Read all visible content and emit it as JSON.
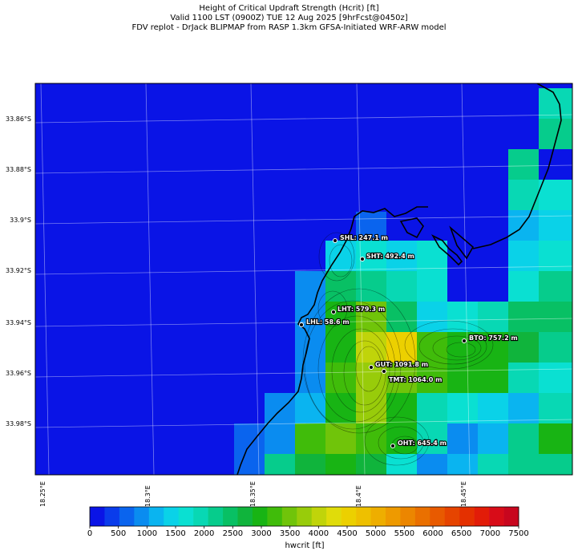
{
  "title": {
    "line1": "Height of Critical Updraft Strength (Hcrit) [ft]",
    "line2": "Valid 1100 LST (0900Z) TUE 12 Aug 2025 [9hrFcst@0450z]",
    "line3": "FDV replot - DrJack BLIPMAP from RASP 1.3km GFSA-Initiated WRF-ARW model"
  },
  "axes": {
    "lat_labels": [
      "33.86°S",
      "33.88°S",
      "33.9°S",
      "33.92°S",
      "33.94°S",
      "33.96°S",
      "33.98°S"
    ],
    "lon_labels": [
      "18.25°E",
      "18.3°E",
      "18.35°E",
      "18.4°E",
      "18.45°E"
    ]
  },
  "stations": [
    {
      "label": "SHL: 247.1 m"
    },
    {
      "label": "SHT: 492.4 m"
    },
    {
      "label": "LHT: 579.3 m"
    },
    {
      "label": "LHL: 58.6 m"
    },
    {
      "label": "BTO: 757.2 m"
    },
    {
      "label": "GUT: 1091.8 m"
    },
    {
      "label": "TMT: 1064.0 m"
    },
    {
      "label": "OHT: 645.4 m"
    }
  ],
  "colorbar": {
    "label": "hwcrit [ft]",
    "ticks": [
      "0",
      "500",
      "1000",
      "1500",
      "2000",
      "2500",
      "3000",
      "3500",
      "4000",
      "4500",
      "5000",
      "5500",
      "6000",
      "6500",
      "7000",
      "7500"
    ],
    "colors": [
      "#0a14e6",
      "#0a3ceb",
      "#0a64ee",
      "#0a8cf0",
      "#0ab4f0",
      "#0ad2e8",
      "#0ae0d2",
      "#08d8b4",
      "#06cc8c",
      "#08c064",
      "#10b43c",
      "#18b414",
      "#40bc0a",
      "#70c40a",
      "#98cc0a",
      "#c0d40a",
      "#e0dc0a",
      "#ecd000",
      "#eec000",
      "#eeae00",
      "#ee9a00",
      "#ec8600",
      "#ea7000",
      "#e85a00",
      "#e64400",
      "#e43000",
      "#e21c08",
      "#d80c18",
      "#c8061e"
    ]
  },
  "chart_data": {
    "type": "heatmap",
    "variable": "Height of Critical Updraft Strength (Hcrit)",
    "units": "ft",
    "colorbar_range": [
      0,
      7500
    ],
    "colorbar_step": 250,
    "lat_range_visible": [
      -33.997,
      -33.847
    ],
    "lon_range_visible": [
      18.25,
      18.51
    ],
    "grid_lines": true,
    "cells": [
      {
        "row": 0,
        "col": 16,
        "v": 1750
      },
      {
        "row": 1,
        "col": 16,
        "v": 1750
      },
      {
        "row": 2,
        "col": 16,
        "v": 2000
      },
      {
        "row": 2,
        "col": 15,
        "v": 2000
      },
      {
        "row": 3,
        "col": 15,
        "v": 1750
      },
      {
        "row": 3,
        "col": 16,
        "v": 1500
      },
      {
        "row": 4,
        "col": 15,
        "v": 1000
      },
      {
        "row": 4,
        "col": 16,
        "v": 1250
      },
      {
        "row": 5,
        "col": 15,
        "v": 1250
      },
      {
        "row": 5,
        "col": 16,
        "v": 1500
      },
      {
        "row": 6,
        "col": 15,
        "v": 1500
      },
      {
        "row": 6,
        "col": 16,
        "v": 2000
      },
      {
        "row": 7,
        "col": 14,
        "v": 2250
      },
      {
        "row": 7,
        "col": 15,
        "v": 2250
      },
      {
        "row": 7,
        "col": 16,
        "v": 2500
      }
    ]
  }
}
